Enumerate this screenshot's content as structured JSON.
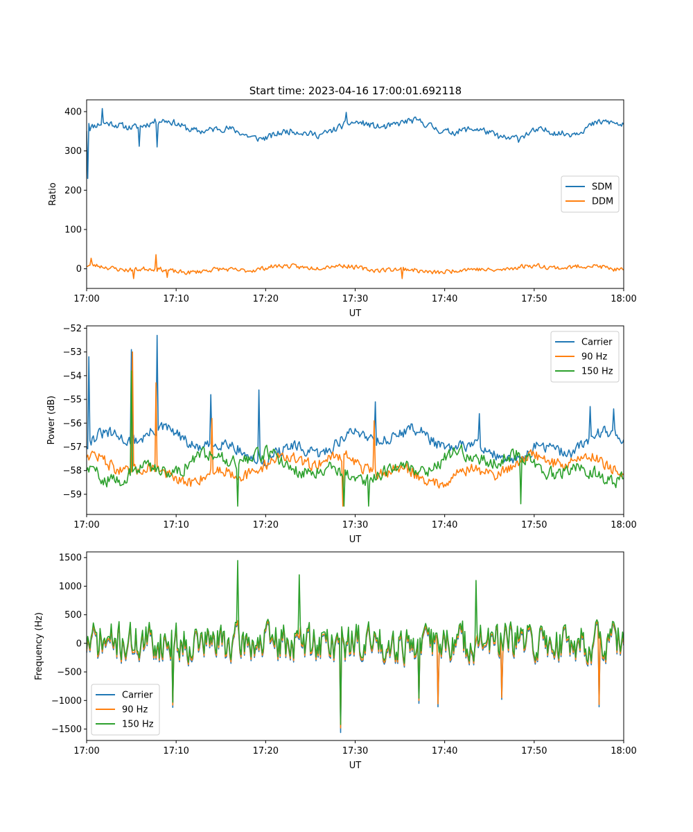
{
  "figure": {
    "title": "Start time: 2023-04-16 17:00:01.692118"
  },
  "chart_data": [
    {
      "type": "line",
      "title": "Start time: 2023-04-16 17:00:01.692118",
      "xlabel": "UT",
      "ylabel": "Ratio",
      "x_ticks": [
        "17:00",
        "17:10",
        "17:20",
        "17:30",
        "17:40",
        "17:50",
        "18:00"
      ],
      "xlim_minutes": [
        0,
        60
      ],
      "ylim": [
        -50,
        430
      ],
      "y_ticks": [
        0,
        100,
        200,
        300,
        400
      ],
      "y_tick_labels": [
        "0",
        "100",
        "200",
        "300",
        "400"
      ],
      "legend": "center-right",
      "series": [
        {
          "name": "SDM",
          "color": "#1f77b4",
          "base": 355,
          "amp": 15,
          "noise": 12,
          "seed": 11,
          "spikes": [
            [
              0.1,
              230
            ],
            [
              0.3,
              370
            ],
            [
              1.7,
              408
            ],
            [
              5.9,
              312
            ],
            [
              7.9,
              310
            ],
            [
              29.0,
              398
            ],
            [
              48.2,
              322
            ]
          ]
        },
        {
          "name": "DDM",
          "color": "#ff7f0e",
          "base": 0,
          "amp": 6,
          "noise": 8,
          "seed": 23,
          "spikes": [
            [
              0.5,
              27
            ],
            [
              5.3,
              -25
            ],
            [
              7.7,
              36
            ],
            [
              9.0,
              -22
            ],
            [
              35.3,
              -25
            ]
          ]
        }
      ]
    },
    {
      "type": "line",
      "title": "",
      "xlabel": "UT",
      "ylabel": "Power (dB)",
      "x_ticks": [
        "17:00",
        "17:10",
        "17:20",
        "17:30",
        "17:40",
        "17:50",
        "18:00"
      ],
      "xlim_minutes": [
        0,
        60
      ],
      "ylim": [
        -59.85,
        -51.9
      ],
      "y_ticks": [
        -59,
        -58,
        -57,
        -56,
        -55,
        -54,
        -53,
        -52
      ],
      "y_tick_labels": [
        "−59",
        "−58",
        "−57",
        "−56",
        "−55",
        "−54",
        "−53",
        "−52"
      ],
      "legend": "top-right",
      "series": [
        {
          "name": "Carrier",
          "color": "#1f77b4",
          "base": -56.9,
          "amp": 0.45,
          "noise": 0.35,
          "seed": 31,
          "spikes": [
            [
              0.2,
              -53.2
            ],
            [
              5.0,
              -52.9
            ],
            [
              7.9,
              -52.3
            ],
            [
              13.9,
              -54.8
            ],
            [
              19.3,
              -54.6
            ],
            [
              32.2,
              -55.1
            ],
            [
              43.9,
              -55.6
            ],
            [
              56.3,
              -55.3
            ],
            [
              58.9,
              -55.4
            ]
          ]
        },
        {
          "name": "90 Hz",
          "color": "#ff7f0e",
          "base": -57.9,
          "amp": 0.4,
          "noise": 0.35,
          "seed": 47,
          "spikes": [
            [
              5.1,
              -53.0
            ],
            [
              7.8,
              -54.3
            ],
            [
              14.0,
              -55.8
            ],
            [
              28.6,
              -59.5
            ],
            [
              32.1,
              -55.9
            ]
          ]
        },
        {
          "name": "150 Hz",
          "color": "#2ca02c",
          "base": -57.8,
          "amp": 0.4,
          "noise": 0.4,
          "seed": 59,
          "spikes": [
            [
              5.0,
              -53.8
            ],
            [
              16.9,
              -59.5
            ],
            [
              28.7,
              -59.5
            ],
            [
              31.5,
              -59.5
            ],
            [
              48.5,
              -59.4
            ]
          ]
        }
      ]
    },
    {
      "type": "line",
      "title": "",
      "xlabel": "UT",
      "ylabel": "Frequency (Hz)",
      "x_ticks": [
        "17:00",
        "17:10",
        "17:20",
        "17:30",
        "17:40",
        "17:50",
        "18:00"
      ],
      "xlim_minutes": [
        0,
        60
      ],
      "ylim": [
        -1700,
        1600
      ],
      "y_ticks": [
        -1500,
        -1000,
        -500,
        0,
        500,
        1000,
        1500
      ],
      "y_tick_labels": [
        "−1500",
        "−1000",
        "−500",
        "0",
        "500",
        "1000",
        "1500"
      ],
      "legend": "bottom-left",
      "series": [
        {
          "name": "Carrier",
          "color": "#1f77b4",
          "base": 0,
          "amp": 0,
          "noise": 380,
          "seed": 71,
          "shift": -25,
          "spikes": [
            [
              9.6,
              -1120
            ],
            [
              28.4,
              -1560
            ],
            [
              37.1,
              -1050
            ],
            [
              39.3,
              -1110
            ],
            [
              46.4,
              -980
            ],
            [
              57.3,
              -1110
            ]
          ]
        },
        {
          "name": "90 Hz",
          "color": "#ff7f0e",
          "base": 0,
          "amp": 0,
          "noise": 380,
          "seed": 71,
          "shift": 0,
          "spikes": [
            [
              9.6,
              -1080
            ],
            [
              28.4,
              -1480
            ],
            [
              37.1,
              -1000
            ],
            [
              39.3,
              -1060
            ],
            [
              46.4,
              -950
            ],
            [
              57.3,
              -1070
            ]
          ]
        },
        {
          "name": "150 Hz",
          "color": "#2ca02c",
          "base": 0,
          "amp": 0,
          "noise": 380,
          "seed": 71,
          "shift": 40,
          "spikes": [
            [
              16.9,
              1450
            ],
            [
              23.7,
              1200
            ],
            [
              28.4,
              -1420
            ],
            [
              43.5,
              1100
            ],
            [
              9.6,
              -1030
            ],
            [
              37.1,
              -960
            ]
          ]
        }
      ]
    }
  ]
}
